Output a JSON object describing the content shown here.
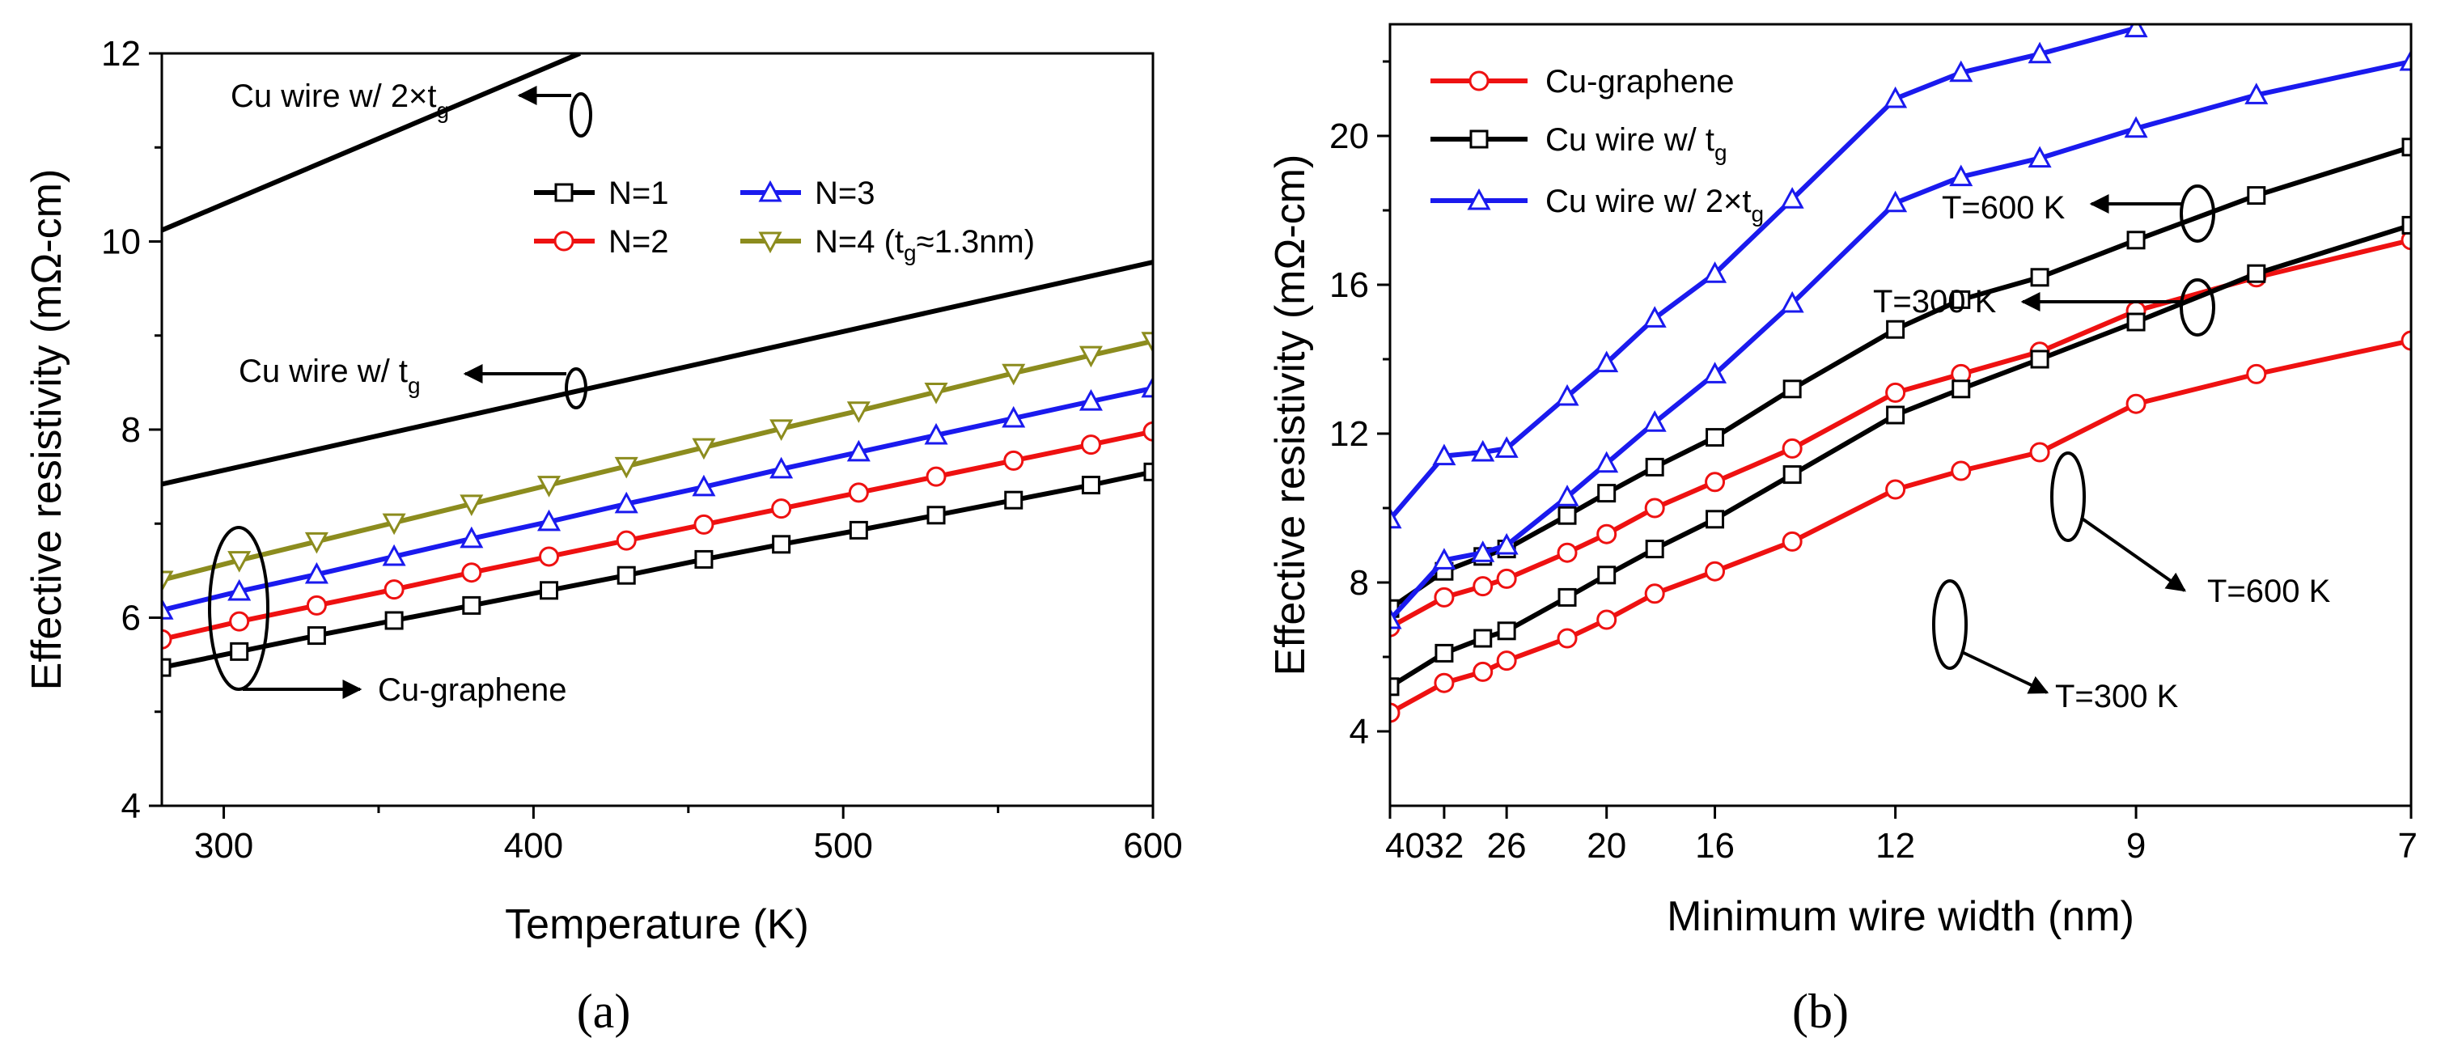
{
  "colors": {
    "black": "#000000",
    "red": "#ee1111",
    "blue": "#1a1aee",
    "olive": "#8c8c1e"
  },
  "chart_data": [
    {
      "type": "line",
      "panel_label": "(a)",
      "xlabel": "Temperature (K)",
      "ylabel": "Effective resistivity (mΩ-cm)",
      "xlim": [
        280,
        600
      ],
      "ylim": [
        4,
        12
      ],
      "xticks": [
        "300",
        "400",
        "500",
        "600"
      ],
      "yticks": [
        "4",
        "6",
        "8",
        "10",
        "12"
      ],
      "legend": {
        "placement": "center-right",
        "entries": [
          "N=1",
          "N=3",
          "N=2",
          "N=4 (tg≈1.3nm)"
        ]
      },
      "series": [
        {
          "name": "N=1",
          "color": "black",
          "marker": "square",
          "x": [
            280,
            305,
            330,
            355,
            380,
            405,
            430,
            455,
            480,
            505,
            530,
            555,
            580,
            600
          ],
          "values": [
            5.47,
            5.64,
            5.81,
            5.97,
            6.13,
            6.29,
            6.45,
            6.62,
            6.78,
            6.93,
            7.09,
            7.25,
            7.41,
            7.55
          ]
        },
        {
          "name": "N=2",
          "color": "red",
          "marker": "circle",
          "x": [
            280,
            305,
            330,
            355,
            380,
            405,
            430,
            455,
            480,
            505,
            530,
            555,
            580,
            600
          ],
          "values": [
            5.77,
            5.96,
            6.13,
            6.3,
            6.48,
            6.65,
            6.82,
            6.99,
            7.16,
            7.33,
            7.5,
            7.67,
            7.84,
            7.98
          ]
        },
        {
          "name": "N=3",
          "color": "blue",
          "marker": "triangle-up",
          "x": [
            280,
            305,
            330,
            355,
            380,
            405,
            430,
            455,
            480,
            505,
            530,
            555,
            580,
            600
          ],
          "values": [
            6.08,
            6.28,
            6.46,
            6.65,
            6.84,
            7.02,
            7.21,
            7.39,
            7.58,
            7.76,
            7.94,
            8.12,
            8.3,
            8.44
          ]
        },
        {
          "name": "N=4 (tg≈1.3nm)",
          "color": "olive",
          "marker": "triangle-down",
          "x": [
            280,
            305,
            330,
            355,
            380,
            405,
            430,
            455,
            480,
            505,
            530,
            555,
            580,
            600
          ],
          "values": [
            6.4,
            6.61,
            6.81,
            7.01,
            7.21,
            7.41,
            7.61,
            7.81,
            8.01,
            8.2,
            8.4,
            8.6,
            8.79,
            8.94
          ]
        },
        {
          "name": "Cu wire w/ tg",
          "color": "black",
          "marker": "none",
          "x": [
            280,
            600
          ],
          "values": [
            7.42,
            9.78
          ]
        },
        {
          "name": "Cu wire w/ 2×tg",
          "color": "black",
          "marker": "none",
          "x": [
            280,
            415
          ],
          "values": [
            10.12,
            12.0
          ]
        }
      ],
      "annotations": [
        {
          "text": "Cu wire w/ 2×tg",
          "points_to": "Cu wire w/ 2×tg line"
        },
        {
          "text": "Cu wire w/ tg",
          "points_to": "Cu wire w/ tg line"
        },
        {
          "text": "Cu-graphene",
          "points_to": "N=1..N=4 curves"
        }
      ]
    },
    {
      "type": "line",
      "panel_label": "(b)",
      "xlabel": "Minimum wire width (nm)",
      "ylabel": "Effective resistivity (mΩ-cm)",
      "x_reversed": true,
      "xlim": [
        40,
        7
      ],
      "ylim": [
        2,
        23
      ],
      "xticks": [
        "40",
        "32",
        "26",
        "20",
        "16",
        "12",
        "9",
        "7"
      ],
      "yticks": [
        "4",
        "8",
        "12",
        "16",
        "20"
      ],
      "legend": {
        "placement": "top-left",
        "entries": [
          "Cu-graphene",
          "Cu wire w/ tg",
          "Cu wire w/ 2×tg"
        ]
      },
      "series": [
        {
          "name": "Cu-graphene",
          "temperature": "T=300 K",
          "color": "red",
          "marker": "circle",
          "x": [
            40,
            32,
            28,
            26,
            22,
            20,
            18,
            16,
            14,
            12,
            11,
            10,
            9,
            8,
            7
          ],
          "values": [
            4.5,
            5.3,
            5.6,
            5.9,
            6.5,
            7.0,
            7.7,
            8.3,
            9.1,
            10.5,
            11.0,
            11.5,
            12.8,
            13.6,
            14.5
          ]
        },
        {
          "name": "Cu-graphene",
          "temperature": "T=600 K",
          "color": "red",
          "marker": "circle",
          "x": [
            40,
            32,
            28,
            26,
            22,
            20,
            18,
            16,
            14,
            12,
            11,
            10,
            9,
            8,
            7
          ],
          "values": [
            6.8,
            7.6,
            7.9,
            8.1,
            8.8,
            9.3,
            10.0,
            10.7,
            11.6,
            13.1,
            13.6,
            14.2,
            15.3,
            16.2,
            17.2
          ]
        },
        {
          "name": "Cu wire w/ tg",
          "temperature": "T=300 K",
          "color": "black",
          "marker": "square",
          "x": [
            40,
            32,
            28,
            26,
            22,
            20,
            18,
            16,
            14,
            12,
            11,
            10,
            9,
            8,
            7
          ],
          "values": [
            5.2,
            6.1,
            6.5,
            6.7,
            7.6,
            8.2,
            8.9,
            9.7,
            10.9,
            12.5,
            13.2,
            14.0,
            15.0,
            16.3,
            17.6
          ]
        },
        {
          "name": "Cu wire w/ tg",
          "temperature": "T=600 K",
          "color": "black",
          "marker": "square",
          "x": [
            40,
            32,
            28,
            26,
            22,
            20,
            18,
            16,
            14,
            12,
            11,
            10,
            9,
            8,
            7
          ],
          "values": [
            7.3,
            8.3,
            8.7,
            8.9,
            9.8,
            10.4,
            11.1,
            11.9,
            13.2,
            14.8,
            15.6,
            16.2,
            17.2,
            18.4,
            19.7
          ]
        },
        {
          "name": "Cu wire w/ 2×tg",
          "temperature": "T=300 K",
          "color": "blue",
          "marker": "triangle-up",
          "x": [
            40,
            32,
            28,
            26,
            22,
            20,
            18,
            16,
            14,
            12,
            11,
            10,
            9,
            8,
            7
          ],
          "values": [
            7.0,
            8.6,
            8.8,
            9.0,
            10.3,
            11.2,
            12.3,
            13.6,
            15.5,
            18.2,
            18.9,
            19.4,
            20.2,
            21.1,
            22.0
          ]
        },
        {
          "name": "Cu wire w/ 2×tg",
          "temperature": "T=600 K",
          "color": "blue",
          "marker": "triangle-up",
          "x": [
            40,
            32,
            28,
            26,
            22,
            20,
            18,
            16,
            14,
            12,
            11,
            10,
            9
          ],
          "values": [
            9.7,
            11.4,
            11.5,
            11.6,
            13.0,
            13.9,
            15.1,
            16.3,
            18.3,
            21.0,
            21.7,
            22.2,
            22.9
          ]
        }
      ],
      "annotations": [
        {
          "text": "T=600 K",
          "points_to": "Cu wire w/ 2×tg upper curve"
        },
        {
          "text": "T=300 K",
          "points_to": "Cu wire w/ 2×tg lower curve"
        },
        {
          "text": "T=600 K",
          "points_to": "Cu-graphene / Cu wire w/ tg upper curves"
        },
        {
          "text": "T=300 K",
          "points_to": "Cu-graphene / Cu wire w/ tg lower curves"
        }
      ]
    }
  ]
}
